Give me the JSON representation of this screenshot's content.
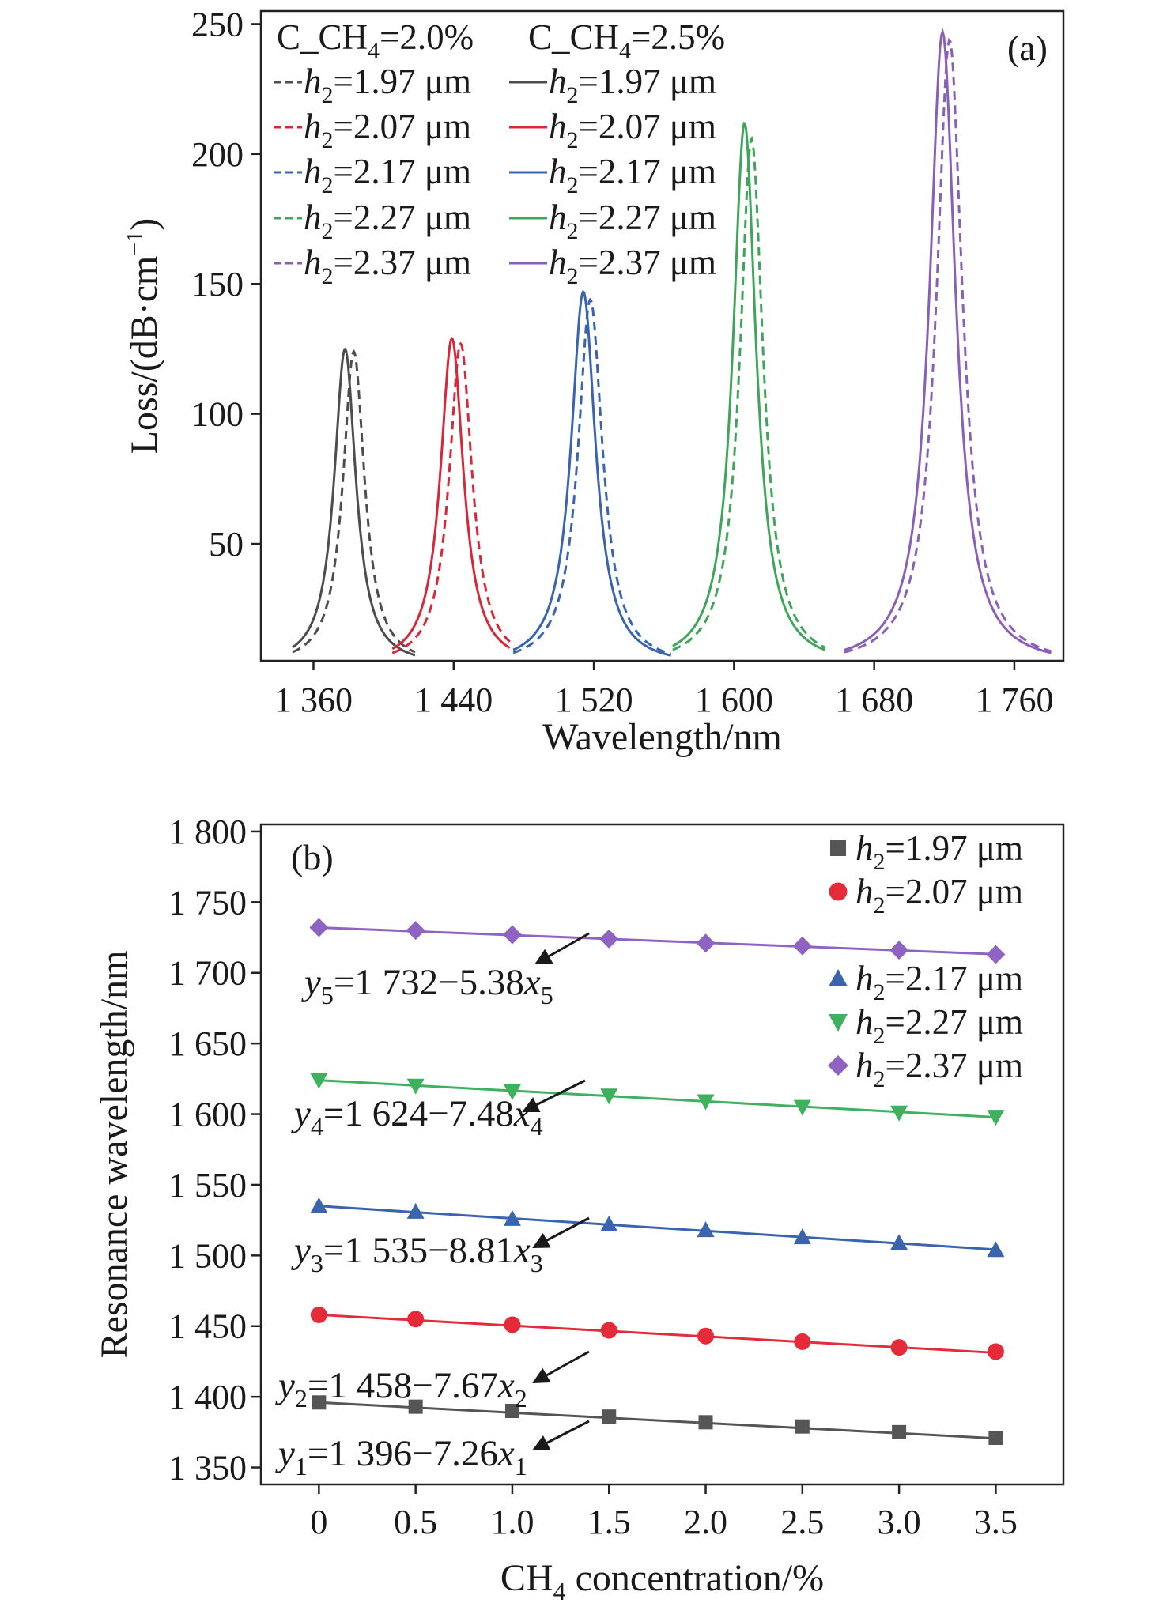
{
  "chart_data": [
    {
      "type": "line",
      "panel_label": "(a)",
      "xlabel": "Wavelength/nm",
      "ylabel_main": "Loss/(dB·cm",
      "ylabel_sup": "−1",
      "ylabel_close": ")",
      "xlim": [
        1330,
        1788
      ],
      "ylim": [
        5,
        255
      ],
      "xticks": [
        {
          "v": 1360,
          "label": "1 360"
        },
        {
          "v": 1440,
          "label": "1 440"
        },
        {
          "v": 1520,
          "label": "1 520"
        },
        {
          "v": 1600,
          "label": "1 600"
        },
        {
          "v": 1680,
          "label": "1 680"
        },
        {
          "v": 1760,
          "label": "1 760"
        }
      ],
      "yticks": [
        {
          "v": 50,
          "label": "50"
        },
        {
          "v": 100,
          "label": "100"
        },
        {
          "v": 150,
          "label": "150"
        },
        {
          "v": 200,
          "label": "200"
        },
        {
          "v": 250,
          "label": "250"
        }
      ],
      "legend": {
        "position": "top-left",
        "header_dashed": {
          "pre": "C_CH",
          "sub": "4",
          "post": "=2.0%"
        },
        "header_solid": {
          "pre": "C_CH",
          "sub": "4",
          "post": "=2.5%"
        }
      },
      "series": [
        {
          "name": "h2=1.97 μm",
          "concentration": "2.0%",
          "style": "dashed",
          "color": "#4d4d4d",
          "peak": 1383,
          "height": 121,
          "gamma": 7.5,
          "range": [
            1348,
            1418
          ],
          "label": {
            "h": "h",
            "sub": "2",
            "rest": "=1.97 μm"
          }
        },
        {
          "name": "h2=1.97 μm",
          "concentration": "2.5%",
          "style": "solid",
          "color": "#4d4d4d",
          "peak": 1378,
          "height": 122,
          "gamma": 7.5,
          "range": [
            1348,
            1418
          ],
          "label": {
            "h": "h",
            "sub": "2",
            "rest": "=1.97 μm"
          }
        },
        {
          "name": "h2=2.07 μm",
          "concentration": "2.0%",
          "style": "dashed",
          "color": "#d62839",
          "peak": 1444,
          "height": 124,
          "gamma": 8,
          "range": [
            1405,
            1472
          ],
          "label": {
            "h": "h",
            "sub": "2",
            "rest": "=2.07 μm"
          }
        },
        {
          "name": "h2=2.07 μm",
          "concentration": "2.5%",
          "style": "solid",
          "color": "#d62839",
          "peak": 1439,
          "height": 126,
          "gamma": 8,
          "range": [
            1405,
            1472
          ],
          "label": {
            "h": "h",
            "sub": "2",
            "rest": "=2.07 μm"
          }
        },
        {
          "name": "h2=2.17 μm",
          "concentration": "2.0%",
          "style": "dashed",
          "color": "#3a64b0",
          "peak": 1518,
          "height": 141,
          "gamma": 8.5,
          "range": [
            1474,
            1564
          ],
          "label": {
            "h": "h",
            "sub": "2",
            "rest": "=2.17 μm"
          }
        },
        {
          "name": "h2=2.17 μm",
          "concentration": "2.5%",
          "style": "solid",
          "color": "#3a64b0",
          "peak": 1514,
          "height": 144,
          "gamma": 8.5,
          "range": [
            1474,
            1564
          ],
          "label": {
            "h": "h",
            "sub": "2",
            "rest": "=2.17 μm"
          }
        },
        {
          "name": "h2=2.27 μm",
          "concentration": "2.0%",
          "style": "dashed",
          "color": "#3fa55b",
          "peak": 1610,
          "height": 203,
          "gamma": 8,
          "range": [
            1565,
            1652
          ],
          "label": {
            "h": "h",
            "sub": "2",
            "rest": "=2.27 μm"
          }
        },
        {
          "name": "h2=2.27 μm",
          "concentration": "2.5%",
          "style": "solid",
          "color": "#3fa55b",
          "peak": 1606,
          "height": 209,
          "gamma": 8,
          "range": [
            1565,
            1652
          ],
          "label": {
            "h": "h",
            "sub": "2",
            "rest": "=2.27 μm"
          }
        },
        {
          "name": "h2=2.37 μm",
          "concentration": "2.0%",
          "style": "dashed",
          "color": "#8a5fb8",
          "peak": 1723,
          "height": 241,
          "gamma": 9,
          "range": [
            1663,
            1781
          ],
          "label": {
            "h": "h",
            "sub": "2",
            "rest": "=2.37 μm"
          }
        },
        {
          "name": "h2=2.37 μm",
          "concentration": "2.5%",
          "style": "solid",
          "color": "#8a5fb8",
          "peak": 1719,
          "height": 244,
          "gamma": 9,
          "range": [
            1663,
            1781
          ],
          "label": {
            "h": "h",
            "sub": "2",
            "rest": "=2.37 μm"
          }
        }
      ]
    },
    {
      "type": "scatter",
      "panel_label": "(b)",
      "xlabel_pre": "CH",
      "xlabel_sub": "4",
      "xlabel_post": " concentration/%",
      "ylabel": "Resonance wavelength/nm",
      "xlim": [
        -0.3,
        3.85
      ],
      "ylim": [
        1338,
        1805
      ],
      "xticks": [
        {
          "v": 0,
          "label": "0"
        },
        {
          "v": 0.5,
          "label": "0.5"
        },
        {
          "v": 1.0,
          "label": "1.0"
        },
        {
          "v": 1.5,
          "label": "1.5"
        },
        {
          "v": 2.0,
          "label": "2.0"
        },
        {
          "v": 2.5,
          "label": "2.5"
        },
        {
          "v": 3.0,
          "label": "3.0"
        },
        {
          "v": 3.5,
          "label": "3.5"
        }
      ],
      "yticks": [
        {
          "v": 1350,
          "label": "1 350"
        },
        {
          "v": 1400,
          "label": "1 400"
        },
        {
          "v": 1450,
          "label": "1 450"
        },
        {
          "v": 1500,
          "label": "1 500"
        },
        {
          "v": 1550,
          "label": "1 550"
        },
        {
          "v": 1600,
          "label": "1 600"
        },
        {
          "v": 1650,
          "label": "1 650"
        },
        {
          "v": 1700,
          "label": "1 700"
        },
        {
          "v": 1750,
          "label": "1 750"
        },
        {
          "v": 1800,
          "label": "1 800"
        }
      ],
      "x": [
        0,
        0.5,
        1.0,
        1.5,
        2.0,
        2.5,
        3.0,
        3.5
      ],
      "legend_position": "top-right",
      "series": [
        {
          "name": "h2=1.97 μm",
          "marker": "square",
          "color": "#555555",
          "y": [
            1396,
            1393,
            1390,
            1386,
            1382,
            1379,
            1375,
            1371
          ],
          "fit": {
            "a": 1396,
            "b": 7.26
          },
          "equation": {
            "y": "y",
            "ysub": "1",
            "mid": "=1 396−7.26",
            "x": "x",
            "xsub": "1"
          },
          "label": {
            "h": "h",
            "sub": "2",
            "rest": "=1.97 μm"
          }
        },
        {
          "name": "h2=2.07 μm",
          "marker": "circle",
          "color": "#e52b39",
          "y": [
            1458,
            1455,
            1451,
            1447,
            1443,
            1439,
            1435,
            1432
          ],
          "fit": {
            "a": 1458,
            "b": 7.67
          },
          "equation": {
            "y": "y",
            "ysub": "2",
            "mid": "=1 458−7.67",
            "x": "x",
            "xsub": "2"
          },
          "label": {
            "h": "h",
            "sub": "2",
            "rest": "=2.07 μm"
          }
        },
        {
          "name": "h2=2.17 μm",
          "marker": "triangle-up",
          "color": "#3a64b0",
          "y": [
            1535,
            1531,
            1526,
            1522,
            1518,
            1513,
            1509,
            1504
          ],
          "fit": {
            "a": 1535,
            "b": 8.81
          },
          "equation": {
            "y": "y",
            "ysub": "3",
            "mid": "=1 535−8.81",
            "x": "x",
            "xsub": "3"
          },
          "label": {
            "h": "h",
            "sub": "2",
            "rest": "=2.17 μm"
          }
        },
        {
          "name": "h2=2.27 μm",
          "marker": "triangle-down",
          "color": "#3fb05e",
          "y": [
            1624,
            1620,
            1616,
            1613,
            1609,
            1605,
            1601,
            1598
          ],
          "fit": {
            "a": 1624,
            "b": 7.48
          },
          "equation": {
            "y": "y",
            "ysub": "4",
            "mid": "=1 624−7.48",
            "x": "x",
            "xsub": "4"
          },
          "label": {
            "h": "h",
            "sub": "2",
            "rest": "=2.27 μm"
          }
        },
        {
          "name": "h2=2.37 μm",
          "marker": "diamond",
          "color": "#8f63c2",
          "y": [
            1732,
            1730,
            1727,
            1724,
            1721,
            1719,
            1716,
            1713
          ],
          "fit": {
            "a": 1732,
            "b": 5.38
          },
          "equation": {
            "y": "y",
            "ysub": "5",
            "mid": "=1 732−5.38",
            "x": "x",
            "xsub": "5"
          },
          "label": {
            "h": "h",
            "sub": "2",
            "rest": "=2.37 μm"
          }
        }
      ]
    }
  ]
}
